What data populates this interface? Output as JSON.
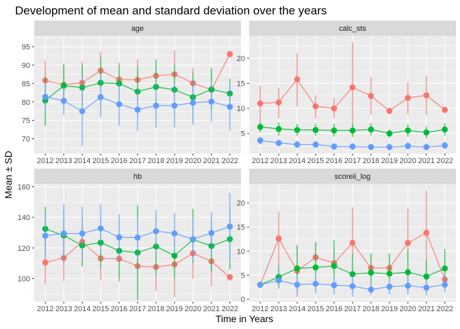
{
  "title": "Development of mean and standard deviation over the years",
  "xlabel": "Time in Years",
  "ylabel": "Mean ± SD",
  "colors": {
    "red": "#F8766D",
    "green": "#00BA38",
    "blue": "#619CFF",
    "panel": "#EBEBEB",
    "strip": "#D9D9D9",
    "grid": "#FFFFFF"
  },
  "chart_data": [
    {
      "type": "line",
      "facet": "age",
      "x": [
        "2012",
        "2013",
        "2014",
        "2015",
        "2016",
        "2017",
        "2018",
        "2019",
        "2020",
        "2021",
        "2022"
      ],
      "ylim": [
        66,
        98
      ],
      "yticks": [
        70,
        75,
        80,
        85,
        90,
        95
      ],
      "series": [
        {
          "color": "#F8766D",
          "mean": [
            85.8,
            84.7,
            85.2,
            88.5,
            86.1,
            86.0,
            87.1,
            87.5,
            85.1,
            83.3,
            93.0
          ],
          "lower": [
            80.3,
            79.3,
            79.5,
            83.2,
            81.0,
            80.6,
            82.6,
            81.0,
            81.0,
            78.3,
            93.0
          ],
          "upper": [
            91.2,
            90.1,
            91.0,
            93.7,
            90.6,
            91.6,
            91.6,
            94.0,
            89.2,
            88.3,
            93.0
          ]
        },
        {
          "color": "#00BA38",
          "mean": [
            80.4,
            84.4,
            83.9,
            85.2,
            85.0,
            82.8,
            84.1,
            83.3,
            81.3,
            83.4,
            82.3
          ],
          "lower": [
            73.5,
            78.5,
            77.6,
            78.2,
            78.3,
            76.1,
            76.8,
            76.4,
            74.7,
            77.6,
            78.3
          ],
          "upper": [
            86.8,
            90.2,
            90.2,
            92.2,
            90.0,
            89.5,
            91.4,
            90.2,
            87.9,
            89.2,
            86.3
          ]
        },
        {
          "color": "#619CFF",
          "mean": [
            81.4,
            80.3,
            77.5,
            81.3,
            79.4,
            77.9,
            79.0,
            79.0,
            79.8,
            80.1,
            78.7
          ],
          "lower": [
            77.5,
            76.5,
            68.0,
            75.8,
            73.5,
            72.1,
            73.0,
            73.0,
            73.8,
            74.6,
            72.2
          ],
          "upper": [
            85.3,
            84.1,
            87.0,
            86.8,
            85.3,
            83.7,
            85.0,
            85.0,
            85.8,
            85.6,
            85.2
          ]
        }
      ]
    },
    {
      "type": "line",
      "facet": "calc_sts",
      "x": [
        "2012",
        "2013",
        "2014",
        "2015",
        "2016",
        "2017",
        "2018",
        "2019",
        "2020",
        "2021",
        "2022"
      ],
      "ylim": [
        1.0,
        24.5
      ],
      "yticks": [
        5,
        10,
        15,
        20
      ],
      "series": [
        {
          "color": "#F8766D",
          "mean": [
            11.0,
            11.2,
            15.8,
            10.4,
            10.0,
            14.2,
            12.5,
            9.5,
            12.1,
            12.6,
            9.7
          ],
          "lower": [
            7.2,
            8.0,
            10.4,
            8.0,
            8.0,
            5.0,
            8.8,
            9.5,
            8.8,
            8.7,
            9.7
          ],
          "upper": [
            14.5,
            14.1,
            21.0,
            12.6,
            12.1,
            23.2,
            16.2,
            9.5,
            15.2,
            16.5,
            9.7
          ]
        },
        {
          "color": "#00BA38",
          "mean": [
            6.3,
            5.9,
            5.7,
            5.7,
            5.6,
            5.6,
            5.8,
            5.0,
            5.6,
            5.2,
            5.8
          ],
          "lower": [
            5.2,
            4.6,
            4.5,
            4.6,
            4.4,
            4.3,
            4.6,
            4.2,
            4.4,
            4.0,
            4.6
          ],
          "upper": [
            7.3,
            7.2,
            6.9,
            6.9,
            6.9,
            6.9,
            7.0,
            5.8,
            6.8,
            6.4,
            7.0
          ]
        },
        {
          "color": "#619CFF",
          "mean": [
            3.6,
            3.1,
            2.8,
            2.8,
            2.4,
            2.4,
            2.3,
            2.3,
            2.5,
            2.3,
            2.6
          ],
          "lower": [
            2.8,
            2.4,
            2.1,
            2.1,
            1.7,
            1.7,
            1.7,
            1.6,
            1.8,
            1.6,
            1.9
          ],
          "upper": [
            4.4,
            3.8,
            3.5,
            3.5,
            3.1,
            3.1,
            2.9,
            3.0,
            3.2,
            3.0,
            3.3
          ]
        }
      ]
    },
    {
      "type": "line",
      "facet": "hb",
      "x": [
        "2012",
        "2013",
        "2014",
        "2015",
        "2016",
        "2017",
        "2018",
        "2019",
        "2020",
        "2021",
        "2022"
      ],
      "ylim": [
        85,
        162
      ],
      "yticks": [
        100,
        120,
        140,
        160
      ],
      "series": [
        {
          "color": "#F8766D",
          "mean": [
            110.5,
            113.5,
            124.0,
            113.2,
            113.0,
            108.2,
            107.6,
            109.2,
            116.5,
            111.3,
            101.0
          ],
          "lower": [
            96.0,
            98.5,
            108.5,
            99.0,
            98.0,
            88.0,
            92.0,
            88.0,
            100.0,
            95.0,
            101.0
          ],
          "upper": [
            125.0,
            128.5,
            139.5,
            127.4,
            128.0,
            128.4,
            123.2,
            130.4,
            133.0,
            127.6,
            101.0
          ]
        },
        {
          "color": "#00BA38",
          "mean": [
            132.5,
            128.2,
            121.6,
            123.5,
            118.2,
            117.0,
            121.0,
            115.0,
            125.5,
            121.3,
            125.8
          ],
          "lower": [
            118.0,
            112.0,
            108.0,
            107.5,
            100.0,
            86.0,
            102.0,
            100.0,
            110.0,
            104.5,
            106.0
          ],
          "upper": [
            147.0,
            144.4,
            135.2,
            139.5,
            136.4,
            148.0,
            140.0,
            130.0,
            145.6,
            138.1,
            145.6
          ]
        },
        {
          "color": "#619CFF",
          "mean": [
            128.0,
            129.5,
            129.5,
            132.8,
            127.0,
            126.8,
            131.0,
            129.5,
            125.8,
            129.8,
            134.0
          ],
          "lower": [
            113.0,
            110.0,
            112.0,
            117.0,
            112.0,
            113.0,
            117.0,
            116.0,
            112.0,
            116.0,
            112.0
          ],
          "upper": [
            143.0,
            149.0,
            147.0,
            148.6,
            142.0,
            140.6,
            145.0,
            143.0,
            139.6,
            143.6,
            156.0
          ]
        }
      ]
    },
    {
      "type": "line",
      "facet": "scoreii_log",
      "x": [
        "2012",
        "2013",
        "2014",
        "2015",
        "2016",
        "2017",
        "2018",
        "2019",
        "2020",
        "2021",
        "2022"
      ],
      "ylim": [
        -0.5,
        24.0
      ],
      "yticks": [
        0,
        5,
        10,
        15,
        20
      ],
      "series": [
        {
          "color": "#F8766D",
          "mean": [
            3.0,
            12.6,
            5.9,
            8.7,
            7.5,
            11.7,
            6.5,
            6.5,
            11.7,
            13.8,
            4.1
          ],
          "lower": [
            3.0,
            7.0,
            0.5,
            5.5,
            4.5,
            4.3,
            4.0,
            3.5,
            5.0,
            5.0,
            4.1
          ],
          "upper": [
            3.0,
            18.2,
            11.3,
            11.9,
            10.5,
            19.1,
            9.0,
            9.5,
            18.8,
            22.6,
            4.1
          ]
        },
        {
          "color": "#00BA38",
          "mean": [
            3.0,
            4.6,
            6.4,
            6.6,
            6.9,
            5.2,
            5.5,
            5.3,
            5.6,
            4.7,
            6.4
          ],
          "lower": [
            3.0,
            2.2,
            1.6,
            1.5,
            1.6,
            1.0,
            1.5,
            1.2,
            1.0,
            1.2,
            2.4
          ],
          "upper": [
            3.0,
            7.0,
            11.2,
            11.7,
            12.2,
            9.4,
            9.5,
            9.4,
            10.2,
            8.2,
            10.4
          ]
        },
        {
          "color": "#619CFF",
          "mean": [
            3.0,
            3.9,
            3.0,
            3.2,
            2.9,
            2.7,
            2.0,
            2.6,
            2.8,
            2.4,
            3.0
          ],
          "lower": [
            2.6,
            2.4,
            1.0,
            1.2,
            1.0,
            0.5,
            0.8,
            1.0,
            1.0,
            0.8,
            1.4
          ],
          "upper": [
            3.4,
            5.4,
            5.0,
            5.2,
            4.8,
            4.9,
            3.2,
            4.2,
            4.6,
            4.0,
            4.6
          ]
        }
      ]
    }
  ]
}
